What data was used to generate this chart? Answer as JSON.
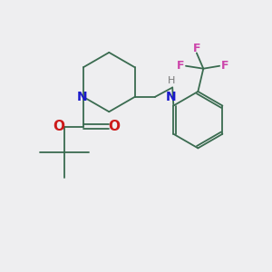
{
  "bg_color": "#eeeef0",
  "bond_color": "#3a6b50",
  "N_color": "#1a1acc",
  "O_color": "#cc1a1a",
  "F_color": "#cc44aa",
  "H_color": "#777777",
  "line_width": 1.3,
  "figsize": [
    3.0,
    3.0
  ],
  "dpi": 100,
  "xlim": [
    0,
    10
  ],
  "ylim": [
    0,
    10
  ]
}
